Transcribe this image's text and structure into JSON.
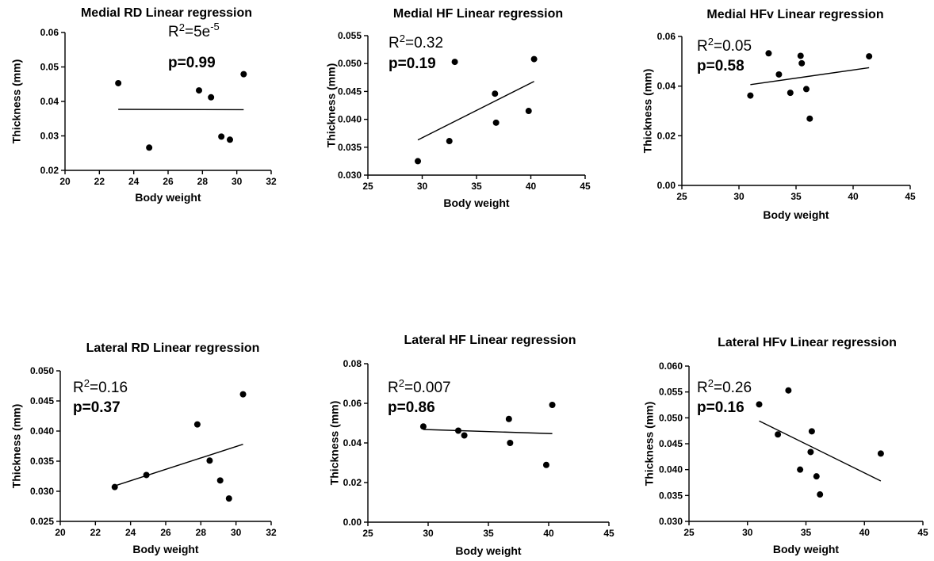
{
  "chart_data": [
    {
      "type": "scatter",
      "title": "Medial RD Linear regression",
      "xlabel": "Body weight",
      "ylabel": "Thickness (mm)",
      "xlim": [
        20,
        32
      ],
      "ylim": [
        0.02,
        0.06
      ],
      "xticks": [
        "20",
        "22",
        "24",
        "26",
        "28",
        "30",
        "32"
      ],
      "yticks": [
        "0.02",
        "0.03",
        "0.04",
        "0.05",
        "0.06"
      ],
      "points": [
        {
          "x": 23.1,
          "y": 0.0453
        },
        {
          "x": 24.9,
          "y": 0.0266
        },
        {
          "x": 27.8,
          "y": 0.0432
        },
        {
          "x": 28.5,
          "y": 0.0412
        },
        {
          "x": 29.1,
          "y": 0.0298
        },
        {
          "x": 29.6,
          "y": 0.0289
        },
        {
          "x": 30.4,
          "y": 0.0479
        }
      ],
      "fit_line": {
        "x": [
          23.1,
          30.4
        ],
        "y": [
          0.0377,
          0.0376
        ]
      },
      "r2_base": "R",
      "r2_exp": "2",
      "r2_value": "=5e",
      "r2_value_sup": "-5",
      "p_text": "p=0.99",
      "grid": false,
      "legend": "none"
    },
    {
      "type": "scatter",
      "title": "Medial HF Linear regression",
      "xlabel": "Body weight",
      "ylabel": "Thickness (mm)",
      "xlim": [
        25,
        45
      ],
      "ylim": [
        0.03,
        0.055
      ],
      "xticks": [
        "25",
        "30",
        "35",
        "40",
        "45"
      ],
      "yticks": [
        "0.030",
        "0.035",
        "0.040",
        "0.045",
        "0.050",
        "0.055"
      ],
      "points": [
        {
          "x": 29.6,
          "y": 0.0325
        },
        {
          "x": 32.5,
          "y": 0.0361
        },
        {
          "x": 33.0,
          "y": 0.0503
        },
        {
          "x": 36.7,
          "y": 0.0446
        },
        {
          "x": 36.8,
          "y": 0.0394
        },
        {
          "x": 39.8,
          "y": 0.0415
        },
        {
          "x": 40.3,
          "y": 0.0508
        }
      ],
      "fit_line": {
        "x": [
          29.6,
          40.3
        ],
        "y": [
          0.0363,
          0.0468
        ]
      },
      "r2_base": "R",
      "r2_exp": "2",
      "r2_value": "=0.32",
      "r2_value_sup": "",
      "p_text": "p=0.19",
      "grid": false,
      "legend": "none"
    },
    {
      "type": "scatter",
      "title": "Medial HFv Linear regression",
      "xlabel": "Body weight",
      "ylabel": "Thickness (mm)",
      "xlim": [
        25,
        45
      ],
      "ylim": [
        0.0,
        0.06
      ],
      "xticks": [
        "25",
        "30",
        "35",
        "40",
        "45"
      ],
      "yticks": [
        "0.00",
        "0.02",
        "0.04",
        "0.06"
      ],
      "points": [
        {
          "x": 31.0,
          "y": 0.0362
        },
        {
          "x": 32.6,
          "y": 0.0532
        },
        {
          "x": 33.5,
          "y": 0.0447
        },
        {
          "x": 34.5,
          "y": 0.0373
        },
        {
          "x": 35.4,
          "y": 0.0522
        },
        {
          "x": 35.5,
          "y": 0.0492
        },
        {
          "x": 35.9,
          "y": 0.0388
        },
        {
          "x": 36.2,
          "y": 0.0269
        },
        {
          "x": 41.4,
          "y": 0.052
        }
      ],
      "fit_line": {
        "x": [
          31.0,
          41.4
        ],
        "y": [
          0.0406,
          0.0474
        ]
      },
      "r2_base": "R",
      "r2_exp": "2",
      "r2_value": "=0.05",
      "r2_value_sup": "",
      "p_text": "p=0.58",
      "grid": false,
      "legend": "none"
    },
    {
      "type": "scatter",
      "title": "Lateral RD Linear regression",
      "xlabel": "Body weight",
      "ylabel": "Thickness (mm)",
      "xlim": [
        20,
        32
      ],
      "ylim": [
        0.025,
        0.05
      ],
      "xticks": [
        "20",
        "22",
        "24",
        "26",
        "28",
        "30",
        "32"
      ],
      "yticks": [
        "0.025",
        "0.030",
        "0.035",
        "0.040",
        "0.045",
        "0.050"
      ],
      "points": [
        {
          "x": 23.1,
          "y": 0.0307
        },
        {
          "x": 24.9,
          "y": 0.0327
        },
        {
          "x": 27.8,
          "y": 0.0411
        },
        {
          "x": 28.5,
          "y": 0.0351
        },
        {
          "x": 29.1,
          "y": 0.0318
        },
        {
          "x": 29.6,
          "y": 0.0288
        },
        {
          "x": 30.4,
          "y": 0.0461
        }
      ],
      "fit_line": {
        "x": [
          23.1,
          30.4
        ],
        "y": [
          0.0309,
          0.0378
        ]
      },
      "r2_base": "R",
      "r2_exp": "2",
      "r2_value": "=0.16",
      "r2_value_sup": "",
      "p_text": "p=0.37",
      "grid": false,
      "legend": "none"
    },
    {
      "type": "scatter",
      "title": "Lateral HF Linear regression",
      "xlabel": "Body weight",
      "ylabel": "Thickness (mm)",
      "xlim": [
        25,
        45
      ],
      "ylim": [
        0.0,
        0.08
      ],
      "xticks": [
        "25",
        "30",
        "35",
        "40",
        "45"
      ],
      "yticks": [
        "0.00",
        "0.02",
        "0.04",
        "0.06",
        "0.08"
      ],
      "points": [
        {
          "x": 29.6,
          "y": 0.0483
        },
        {
          "x": 32.5,
          "y": 0.0462
        },
        {
          "x": 33.0,
          "y": 0.0438
        },
        {
          "x": 36.7,
          "y": 0.0521
        },
        {
          "x": 36.8,
          "y": 0.04
        },
        {
          "x": 39.8,
          "y": 0.0289
        },
        {
          "x": 40.3,
          "y": 0.0592
        }
      ],
      "fit_line": {
        "x": [
          29.6,
          40.3
        ],
        "y": [
          0.0468,
          0.0447
        ]
      },
      "r2_base": "R",
      "r2_exp": "2",
      "r2_value": "=0.007",
      "r2_value_sup": "",
      "p_text": "p=0.86",
      "grid": false,
      "legend": "none"
    },
    {
      "type": "scatter",
      "title": "Lateral HFv Linear regression",
      "xlabel": "Body weight",
      "ylabel": "Thickness (mm)",
      "xlim": [
        25,
        45
      ],
      "ylim": [
        0.03,
        0.06
      ],
      "xticks": [
        "25",
        "30",
        "35",
        "40",
        "45"
      ],
      "yticks": [
        "0.030",
        "0.035",
        "0.040",
        "0.045",
        "0.050",
        "0.055",
        "0.060"
      ],
      "points": [
        {
          "x": 31.0,
          "y": 0.0526
        },
        {
          "x": 32.6,
          "y": 0.0468
        },
        {
          "x": 33.5,
          "y": 0.0553
        },
        {
          "x": 34.5,
          "y": 0.04
        },
        {
          "x": 35.4,
          "y": 0.0434
        },
        {
          "x": 35.5,
          "y": 0.0474
        },
        {
          "x": 35.9,
          "y": 0.0387
        },
        {
          "x": 36.2,
          "y": 0.0352
        },
        {
          "x": 41.4,
          "y": 0.0431
        }
      ],
      "fit_line": {
        "x": [
          31.0,
          41.4
        ],
        "y": [
          0.0494,
          0.0378
        ]
      },
      "r2_base": "R",
      "r2_exp": "2",
      "r2_value": "=0.26",
      "r2_value_sup": "",
      "p_text": "p=0.16",
      "grid": false,
      "legend": "none"
    }
  ]
}
